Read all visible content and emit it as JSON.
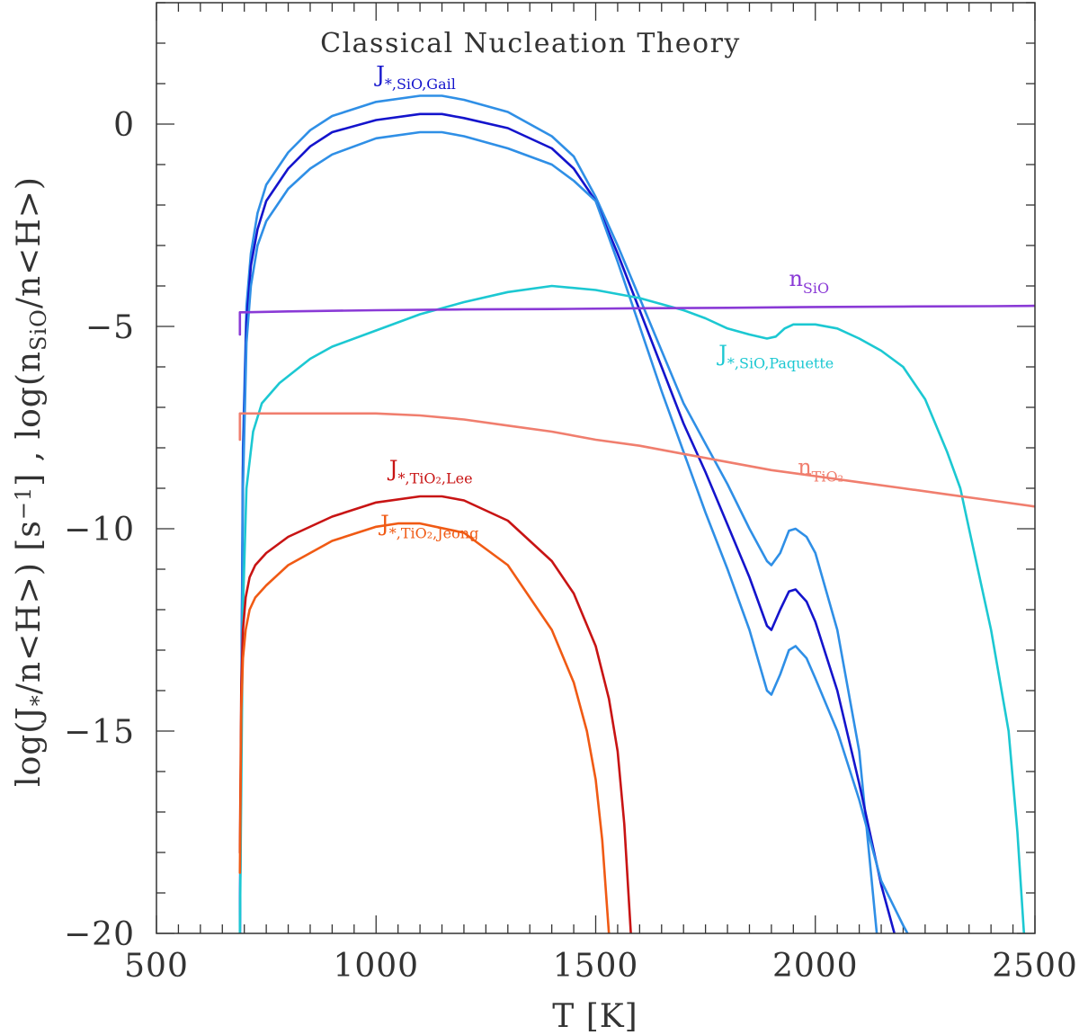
{
  "chart_data": {
    "type": "line",
    "title": "Classical Nucleation Theory",
    "xlabel": "T [K]",
    "ylabel": "log(J∗/n<H>) [s⁻¹] , log(nₛᵢₒ/n<H>)",
    "ylabel_parts": {
      "a": "log(J",
      "a_sub": "*",
      "b": "/n<H>) [s",
      "b_sup": "−1",
      "c": "] , log(n",
      "c_sub": "SiO",
      "d": "/n<H>)"
    },
    "xlim": [
      500,
      2500
    ],
    "ylim": [
      -20,
      3
    ],
    "xticks": [
      500,
      1000,
      1500,
      2000,
      2500
    ],
    "yticks": [
      0,
      -5,
      -10,
      -15,
      -20
    ],
    "xtick_labels": [
      "500",
      "1000",
      "1500",
      "2000",
      "2500"
    ],
    "ytick_labels": [
      "0",
      "−5",
      "−10",
      "−15",
      "−20"
    ],
    "grid": false,
    "series": [
      {
        "name": "J*,SiO,Gail (upper)",
        "color": "#2f8fe6",
        "x": [
          690,
          697,
          705,
          715,
          730,
          750,
          800,
          850,
          900,
          1000,
          1100,
          1150,
          1200,
          1300,
          1400,
          1450,
          1500,
          1550,
          1600,
          1650,
          1700,
          1750,
          1800,
          1850,
          1890,
          1900,
          1920,
          1940,
          1955,
          1980,
          2000,
          2050,
          2100,
          2140
        ],
        "y": [
          -20,
          -8,
          -4.5,
          -3.2,
          -2.2,
          -1.5,
          -0.7,
          -0.15,
          0.2,
          0.55,
          0.7,
          0.7,
          0.6,
          0.3,
          -0.3,
          -0.8,
          -1.8,
          -3.0,
          -4.3,
          -5.6,
          -6.9,
          -7.9,
          -8.9,
          -10.0,
          -10.8,
          -10.9,
          -10.6,
          -10.05,
          -10.0,
          -10.2,
          -10.6,
          -12.5,
          -15.5,
          -20
        ]
      },
      {
        "name": "J*,SiO,Gail",
        "color": "#1414cc",
        "x": [
          690,
          697,
          705,
          715,
          730,
          750,
          800,
          850,
          900,
          1000,
          1100,
          1150,
          1200,
          1300,
          1400,
          1450,
          1500,
          1550,
          1600,
          1650,
          1700,
          1750,
          1800,
          1850,
          1890,
          1900,
          1920,
          1940,
          1955,
          1980,
          2000,
          2050,
          2100,
          2150,
          2180
        ],
        "y": [
          -20,
          -8.5,
          -4.9,
          -3.5,
          -2.6,
          -1.9,
          -1.1,
          -0.55,
          -0.2,
          0.1,
          0.25,
          0.25,
          0.15,
          -0.1,
          -0.6,
          -1.1,
          -1.9,
          -3.2,
          -4.6,
          -6.0,
          -7.4,
          -8.6,
          -9.9,
          -11.2,
          -12.4,
          -12.5,
          -12.0,
          -11.55,
          -11.5,
          -11.8,
          -12.3,
          -14.0,
          -16.3,
          -18.8,
          -20
        ]
      },
      {
        "name": "J*,SiO,Gail (lower)",
        "color": "#2f8fe6",
        "x": [
          690,
          697,
          705,
          715,
          730,
          750,
          800,
          850,
          900,
          1000,
          1100,
          1150,
          1200,
          1300,
          1400,
          1450,
          1500,
          1550,
          1600,
          1650,
          1700,
          1750,
          1800,
          1850,
          1890,
          1900,
          1920,
          1940,
          1955,
          1980,
          2000,
          2050,
          2100,
          2150,
          2200,
          2210
        ],
        "y": [
          -20,
          -9,
          -5.4,
          -4.0,
          -3.0,
          -2.4,
          -1.6,
          -1.1,
          -0.75,
          -0.35,
          -0.2,
          -0.2,
          -0.3,
          -0.6,
          -1.0,
          -1.4,
          -1.9,
          -3.4,
          -5.0,
          -6.6,
          -8.1,
          -9.6,
          -11.0,
          -12.5,
          -14.0,
          -14.1,
          -13.6,
          -13.0,
          -12.9,
          -13.2,
          -13.7,
          -15.0,
          -16.7,
          -18.7,
          -19.8,
          -20
        ]
      },
      {
        "name": "J*,SiO,Paquette",
        "color": "#1cc8d2",
        "x": [
          690,
          697,
          705,
          720,
          740,
          780,
          850,
          900,
          1000,
          1100,
          1200,
          1300,
          1400,
          1500,
          1600,
          1700,
          1750,
          1800,
          1850,
          1890,
          1910,
          1930,
          1950,
          2000,
          2050,
          2100,
          2150,
          2200,
          2250,
          2300,
          2330,
          2350,
          2400,
          2440,
          2460,
          2475
        ],
        "y": [
          -20,
          -12,
          -9.0,
          -7.6,
          -6.9,
          -6.4,
          -5.8,
          -5.5,
          -5.1,
          -4.7,
          -4.4,
          -4.15,
          -4.0,
          -4.1,
          -4.3,
          -4.6,
          -4.8,
          -5.05,
          -5.2,
          -5.3,
          -5.25,
          -5.05,
          -4.95,
          -4.95,
          -5.05,
          -5.3,
          -5.6,
          -6.0,
          -6.8,
          -8.1,
          -9.0,
          -10.0,
          -12.5,
          -15.0,
          -17.5,
          -20
        ]
      },
      {
        "name": "n_SiO",
        "color": "#8a3ad6",
        "x": [
          690,
          690,
          700,
          800,
          1000,
          1200,
          1400,
          1600,
          1800,
          2000,
          2200,
          2400,
          2500
        ],
        "y": [
          -5.2,
          -4.65,
          -4.65,
          -4.63,
          -4.6,
          -4.58,
          -4.57,
          -4.55,
          -4.54,
          -4.52,
          -4.51,
          -4.5,
          -4.49
        ]
      },
      {
        "name": "n_TiO2",
        "color": "#f07e6e",
        "x": [
          690,
          690,
          700,
          800,
          1000,
          1100,
          1200,
          1300,
          1400,
          1500,
          1600,
          1700,
          1800,
          1900,
          2000,
          2100,
          2200,
          2300,
          2400,
          2500
        ],
        "y": [
          -7.8,
          -7.15,
          -7.15,
          -7.15,
          -7.15,
          -7.2,
          -7.3,
          -7.45,
          -7.6,
          -7.8,
          -7.95,
          -8.15,
          -8.35,
          -8.55,
          -8.7,
          -8.85,
          -9.0,
          -9.15,
          -9.3,
          -9.45
        ]
      },
      {
        "name": "J*,TiO2,Lee",
        "color": "#c81414",
        "x": [
          690,
          693,
          697,
          703,
          712,
          725,
          750,
          800,
          900,
          1000,
          1100,
          1150,
          1200,
          1300,
          1400,
          1450,
          1500,
          1530,
          1550,
          1565,
          1580
        ],
        "y": [
          -18,
          -14,
          -12.5,
          -11.7,
          -11.2,
          -10.9,
          -10.6,
          -10.2,
          -9.7,
          -9.35,
          -9.2,
          -9.2,
          -9.3,
          -9.8,
          -10.8,
          -11.6,
          -12.9,
          -14.2,
          -15.5,
          -17.3,
          -20
        ]
      },
      {
        "name": "J*,TiO2,Jeong",
        "color": "#f05a14",
        "x": [
          690,
          693,
          697,
          703,
          712,
          725,
          750,
          800,
          900,
          1000,
          1050,
          1100,
          1200,
          1300,
          1400,
          1450,
          1480,
          1500,
          1515,
          1530
        ],
        "y": [
          -18.5,
          -14.5,
          -13.2,
          -12.5,
          -12.0,
          -11.7,
          -11.4,
          -10.9,
          -10.3,
          -9.95,
          -9.87,
          -9.87,
          -10.1,
          -10.9,
          -12.5,
          -13.8,
          -15.0,
          -16.2,
          -17.7,
          -20
        ]
      }
    ],
    "annotations": [
      {
        "text": "J",
        "sub": "*,SiO,Gail",
        "x": 1000,
        "y": 1.05,
        "color": "#1414cc"
      },
      {
        "text": "n",
        "sub": "SiO",
        "x": 1940,
        "y": -4.0,
        "color": "#8a3ad6"
      },
      {
        "text": "J",
        "sub": "*,SiO,Paquette",
        "x": 1780,
        "y": -5.85,
        "color": "#1cc8d2"
      },
      {
        "text": "n",
        "sub": "TiO₂",
        "x": 1960,
        "y": -8.65,
        "color": "#f07e6e"
      },
      {
        "text": "J",
        "sub": "*,TiO₂,Lee",
        "x": 1030,
        "y": -8.7,
        "color": "#c81414"
      },
      {
        "text": "J",
        "sub": "*,TiO₂,Jeong",
        "x": 1010,
        "y": -10.05,
        "color": "#f05a14"
      }
    ]
  }
}
